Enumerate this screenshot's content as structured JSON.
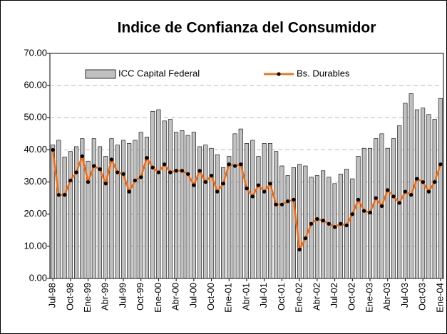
{
  "chart_data": {
    "type": "bar_line",
    "title": "Indice de Confianza del Consumidor",
    "categories": [
      "Jul-98",
      null,
      null,
      "Oct-98",
      null,
      null,
      "Ene-99",
      null,
      null,
      "Abr-99",
      null,
      null,
      "Jul-99",
      null,
      null,
      "Oct-99",
      null,
      null,
      "Ene-00",
      null,
      null,
      "Abr-00",
      null,
      null,
      "Jul-00",
      null,
      null,
      "Oct-00",
      null,
      null,
      "Ene-01",
      null,
      null,
      "Abr-01",
      null,
      null,
      "Jul-01",
      null,
      null,
      "Oct-01",
      null,
      null,
      "Ene-02",
      null,
      null,
      "Abr-02",
      null,
      null,
      "Jul-02",
      null,
      null,
      "Oct-02",
      null,
      null,
      "Ene-03",
      null,
      null,
      "Abr-03",
      null,
      null,
      "Jul-03",
      null,
      null,
      "Oct-03",
      null,
      null,
      "Ene-04"
    ],
    "series": [
      {
        "name": "ICC Capital Federal",
        "kind": "bar",
        "color": "#c0c0c0",
        "values": [
          41.5,
          43,
          37.8,
          39.5,
          41,
          43.5,
          36.5,
          43.5,
          41,
          38,
          43.5,
          41.5,
          43,
          42,
          43,
          45.5,
          44,
          52,
          52.5,
          49,
          49.5,
          45.5,
          46,
          44.5,
          45.5,
          41,
          41.5,
          40.5,
          38.5,
          34.5,
          38,
          45,
          46.5,
          42,
          43,
          38,
          42,
          42,
          39.5,
          35,
          32,
          34.5,
          35.5,
          35,
          31.5,
          32,
          33.5,
          31.5,
          29.5,
          32.5,
          34,
          31,
          38,
          40.5,
          40.5,
          43.5,
          45,
          40.5,
          43.5,
          47.5,
          54.5,
          57.5,
          52.5,
          53,
          51,
          49.5,
          56
        ]
      },
      {
        "name": "Bs. Durables",
        "kind": "line",
        "color": "#ff6600",
        "values": [
          40,
          26,
          26,
          30.5,
          33,
          38,
          30,
          35,
          34,
          29.5,
          37,
          33,
          32.5,
          27,
          30.5,
          31.5,
          37.5,
          34.5,
          33,
          35.5,
          33,
          33.5,
          33.5,
          32.5,
          29,
          33.5,
          30,
          32,
          27,
          29.5,
          35.5,
          35,
          35.5,
          28,
          25.5,
          29,
          27,
          29.5,
          23,
          23,
          24,
          24.5,
          9,
          12.5,
          17,
          18.5,
          18,
          17,
          16,
          17,
          16.5,
          20,
          24.5,
          21,
          20.5,
          25,
          22.5,
          27.5,
          25.5,
          23.5,
          27,
          26,
          31,
          30,
          27,
          30,
          35.5
        ]
      }
    ],
    "ylim": [
      0,
      70
    ],
    "yticks": [
      {
        "value": 0,
        "label": "0.00"
      },
      {
        "value": 10,
        "label": "10.00"
      },
      {
        "value": 20,
        "label": "20.00"
      },
      {
        "value": 30,
        "label": "30.00"
      },
      {
        "value": 40,
        "label": "40.00"
      },
      {
        "value": 50,
        "label": "50.00"
      },
      {
        "value": 60,
        "label": "60.00"
      },
      {
        "value": 70,
        "label": "70.00"
      }
    ],
    "grid": true,
    "legend": "top"
  }
}
